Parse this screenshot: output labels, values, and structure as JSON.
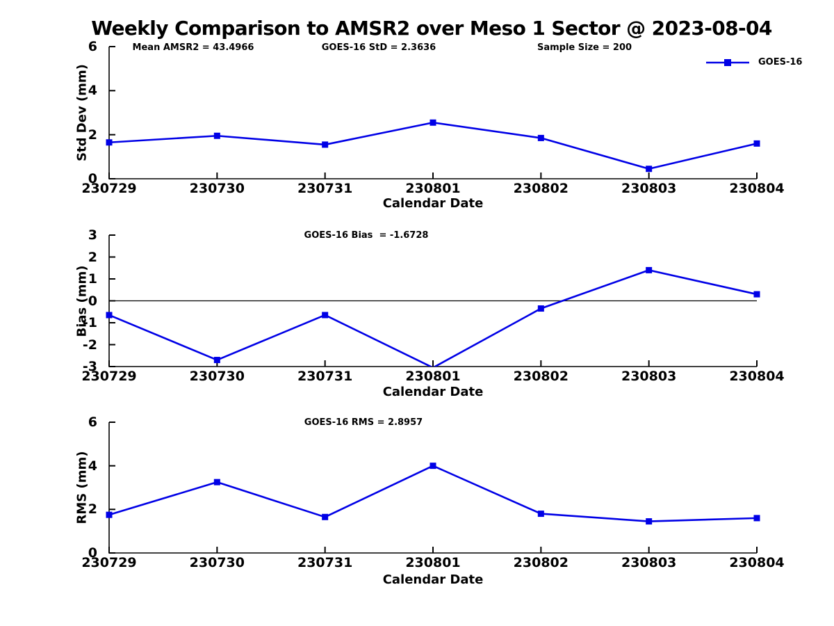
{
  "title": "Weekly Comparison to AMSR2 over Meso 1 Sector @ 2023-08-04",
  "legend": {
    "label": "GOES-16",
    "color": "#0000e6"
  },
  "chart_data": [
    {
      "type": "line",
      "categories": [
        "230729",
        "230730",
        "230731",
        "230801",
        "230802",
        "230803",
        "230804"
      ],
      "series": [
        {
          "name": "GOES-16",
          "color": "#0000e6",
          "marker": "square",
          "values": [
            1.65,
            1.95,
            1.55,
            2.55,
            1.85,
            0.45,
            1.6
          ]
        }
      ],
      "xlabel": "Calendar Date",
      "ylabel": "Std Dev (mm)",
      "ylim": [
        0,
        6
      ],
      "yticks": [
        0,
        2,
        4,
        6
      ],
      "zero_line": false,
      "grid": false,
      "legend_position": "top-right",
      "annotations": [
        "Mean AMSR2 = 43.4966",
        "GOES-16 StD = 2.3636",
        "Sample Size = 200"
      ]
    },
    {
      "type": "line",
      "categories": [
        "230729",
        "230730",
        "230731",
        "230801",
        "230802",
        "230803",
        "230804"
      ],
      "series": [
        {
          "name": "GOES-16",
          "color": "#0000e6",
          "marker": "square",
          "values": [
            -0.65,
            -2.7,
            -0.65,
            -3.05,
            -0.35,
            1.4,
            0.3
          ]
        }
      ],
      "xlabel": "Calendar Date",
      "ylabel": "Bias (mm)",
      "ylim": [
        -3,
        3
      ],
      "yticks": [
        -3,
        -2,
        -1,
        0,
        1,
        2,
        3
      ],
      "zero_line": true,
      "grid": false,
      "legend_position": "none",
      "annotations": [
        "GOES-16 Bias  = -1.6728"
      ]
    },
    {
      "type": "line",
      "categories": [
        "230729",
        "230730",
        "230731",
        "230801",
        "230802",
        "230803",
        "230804"
      ],
      "series": [
        {
          "name": "GOES-16",
          "color": "#0000e6",
          "marker": "square",
          "values": [
            1.75,
            3.25,
            1.65,
            4.0,
            1.8,
            1.45,
            1.6
          ]
        }
      ],
      "xlabel": "Calendar Date",
      "ylabel": "RMS (mm)",
      "ylim": [
        0,
        6
      ],
      "yticks": [
        0,
        2,
        4,
        6
      ],
      "zero_line": false,
      "grid": false,
      "legend_position": "none",
      "annotations": [
        "GOES-16 RMS = 2.8957"
      ]
    }
  ]
}
